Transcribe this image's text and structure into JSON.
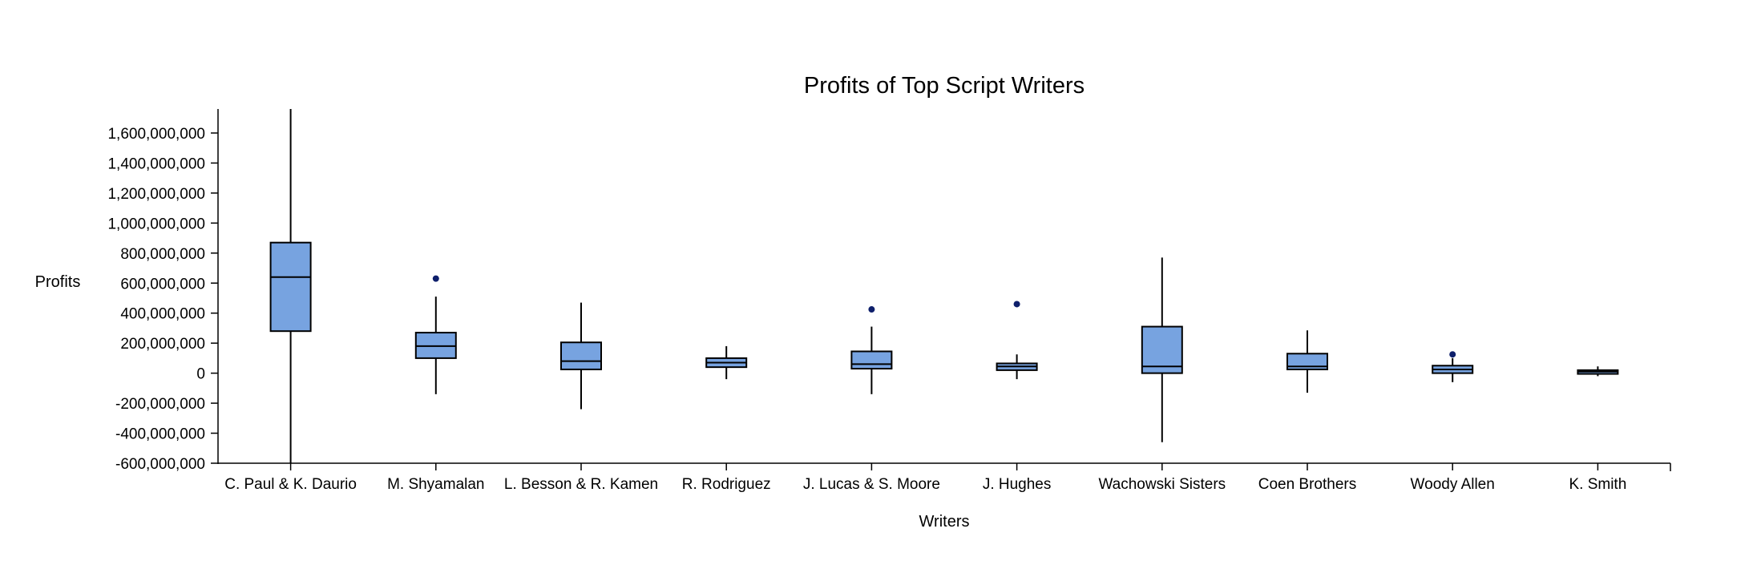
{
  "colors": {
    "box_fill": "#77a3e0",
    "outlier": "#0e1f6b",
    "stroke": "#000000"
  },
  "chart_data": {
    "type": "boxplot",
    "title": "Profits of Top Script Writers",
    "xlabel": "Writers",
    "ylabel": "Profits",
    "ylim": [
      -600000000,
      1760000000
    ],
    "yticks": [
      -600000000,
      -400000000,
      -200000000,
      0,
      200000000,
      400000000,
      600000000,
      800000000,
      1000000000,
      1200000000,
      1400000000,
      1600000000
    ],
    "ytick_labels": [
      "-600,000,000",
      "-400,000,000",
      "-200,000,000",
      "0",
      "200,000,000",
      "400,000,000",
      "600,000,000",
      "800,000,000",
      "1,000,000,000",
      "1,200,000,000",
      "1,400,000,000",
      "1,600,000,000"
    ],
    "grid": false,
    "categories": [
      "C. Paul & K. Daurio",
      "M. Shyamalan",
      "L. Besson & R. Kamen",
      "R. Rodriguez",
      "J. Lucas & S. Moore",
      "J. Hughes",
      "Wachowski Sisters",
      "Coen Brothers",
      "Woody Allen",
      "K. Smith"
    ],
    "boxes": [
      {
        "min": -600000000,
        "q1": 280000000,
        "median": 640000000,
        "q3": 870000000,
        "max": 1760000000,
        "outliers": []
      },
      {
        "min": -140000000,
        "q1": 100000000,
        "median": 180000000,
        "q3": 270000000,
        "max": 510000000,
        "outliers": [
          630000000
        ]
      },
      {
        "min": -240000000,
        "q1": 25000000,
        "median": 80000000,
        "q3": 205000000,
        "max": 470000000,
        "outliers": []
      },
      {
        "min": -40000000,
        "q1": 40000000,
        "median": 70000000,
        "q3": 100000000,
        "max": 180000000,
        "outliers": []
      },
      {
        "min": -140000000,
        "q1": 30000000,
        "median": 60000000,
        "q3": 145000000,
        "max": 310000000,
        "outliers": [
          425000000
        ]
      },
      {
        "min": -40000000,
        "q1": 20000000,
        "median": 45000000,
        "q3": 65000000,
        "max": 125000000,
        "outliers": [
          460000000
        ]
      },
      {
        "min": -460000000,
        "q1": 0,
        "median": 45000000,
        "q3": 310000000,
        "max": 770000000,
        "outliers": []
      },
      {
        "min": -130000000,
        "q1": 25000000,
        "median": 45000000,
        "q3": 130000000,
        "max": 285000000,
        "outliers": []
      },
      {
        "min": -60000000,
        "q1": 0,
        "median": 25000000,
        "q3": 50000000,
        "max": 100000000,
        "outliers": [
          125000000
        ]
      },
      {
        "min": -20000000,
        "q1": -5000000,
        "median": 10000000,
        "q3": 20000000,
        "max": 45000000,
        "outliers": []
      }
    ]
  }
}
